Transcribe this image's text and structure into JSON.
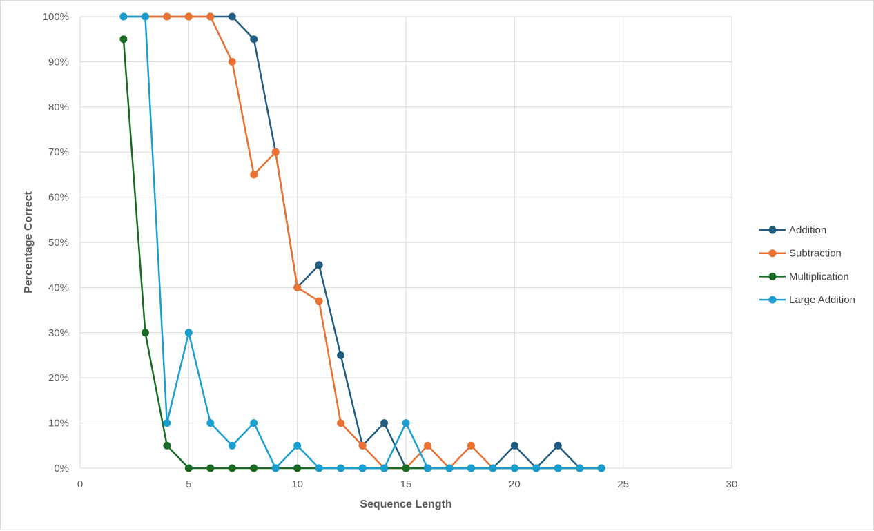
{
  "chart_data": {
    "type": "scatter",
    "mode": "lines+markers",
    "xlabel": "Sequence Length",
    "ylabel": "Percentage Correct",
    "xlim": [
      0,
      30
    ],
    "ylim": [
      0,
      100
    ],
    "x_ticks": [
      0,
      5,
      10,
      15,
      20,
      25,
      30
    ],
    "y_ticks": [
      0,
      10,
      20,
      30,
      40,
      50,
      60,
      70,
      80,
      90,
      100
    ],
    "y_tick_labels": [
      "0%",
      "10%",
      "20%",
      "30%",
      "40%",
      "50%",
      "60%",
      "70%",
      "80%",
      "90%",
      "100%"
    ],
    "grid": true,
    "legend_position": "right",
    "series": [
      {
        "name": "Addition",
        "color": "#1f5c7f",
        "points": [
          [
            2,
            100
          ],
          [
            3,
            100
          ],
          [
            4,
            100
          ],
          [
            5,
            100
          ],
          [
            6,
            100
          ],
          [
            7,
            100
          ],
          [
            8,
            95
          ],
          [
            9,
            70
          ],
          [
            10,
            40
          ],
          [
            11,
            45
          ],
          [
            12,
            25
          ],
          [
            13,
            5
          ],
          [
            14,
            10
          ],
          [
            15,
            0
          ],
          [
            16,
            0
          ],
          [
            17,
            0
          ],
          [
            18,
            0
          ],
          [
            19,
            0
          ],
          [
            20,
            5
          ],
          [
            21,
            0
          ],
          [
            22,
            5
          ],
          [
            23,
            0
          ],
          [
            24,
            0
          ]
        ]
      },
      {
        "name": "Subtraction",
        "color": "#e97132",
        "points": [
          [
            2,
            100
          ],
          [
            3,
            100
          ],
          [
            4,
            100
          ],
          [
            5,
            100
          ],
          [
            6,
            100
          ],
          [
            7,
            90
          ],
          [
            8,
            65
          ],
          [
            9,
            70
          ],
          [
            10,
            40
          ],
          [
            11,
            37
          ],
          [
            12,
            10
          ],
          [
            13,
            5
          ],
          [
            14,
            0
          ],
          [
            15,
            0
          ],
          [
            16,
            5
          ],
          [
            17,
            0
          ],
          [
            18,
            5
          ],
          [
            19,
            0
          ],
          [
            20,
            0
          ],
          [
            21,
            0
          ],
          [
            22,
            0
          ],
          [
            23,
            0
          ],
          [
            24,
            0
          ]
        ]
      },
      {
        "name": "Multiplication",
        "color": "#196b24",
        "points": [
          [
            2,
            95
          ],
          [
            3,
            30
          ],
          [
            4,
            5
          ],
          [
            5,
            0
          ],
          [
            6,
            0
          ],
          [
            7,
            0
          ],
          [
            8,
            0
          ],
          [
            9,
            0
          ],
          [
            10,
            0
          ],
          [
            11,
            0
          ],
          [
            12,
            0
          ],
          [
            13,
            0
          ],
          [
            14,
            0
          ],
          [
            15,
            0
          ],
          [
            16,
            0
          ],
          [
            17,
            0
          ],
          [
            18,
            0
          ],
          [
            19,
            0
          ],
          [
            20,
            0
          ],
          [
            21,
            0
          ],
          [
            22,
            0
          ],
          [
            23,
            0
          ],
          [
            24,
            0
          ]
        ]
      },
      {
        "name": "Large Addition",
        "color": "#1a9dcf",
        "points": [
          [
            2,
            100
          ],
          [
            3,
            100
          ],
          [
            4,
            10
          ],
          [
            5,
            30
          ],
          [
            6,
            10
          ],
          [
            7,
            5
          ],
          [
            8,
            10
          ],
          [
            9,
            0
          ],
          [
            10,
            5
          ],
          [
            11,
            0
          ],
          [
            12,
            0
          ],
          [
            13,
            0
          ],
          [
            14,
            0
          ],
          [
            15,
            10
          ],
          [
            16,
            0
          ],
          [
            17,
            0
          ],
          [
            18,
            0
          ],
          [
            19,
            0
          ],
          [
            20,
            0
          ],
          [
            21,
            0
          ],
          [
            22,
            0
          ],
          [
            23,
            0
          ],
          [
            24,
            0
          ]
        ]
      }
    ]
  }
}
